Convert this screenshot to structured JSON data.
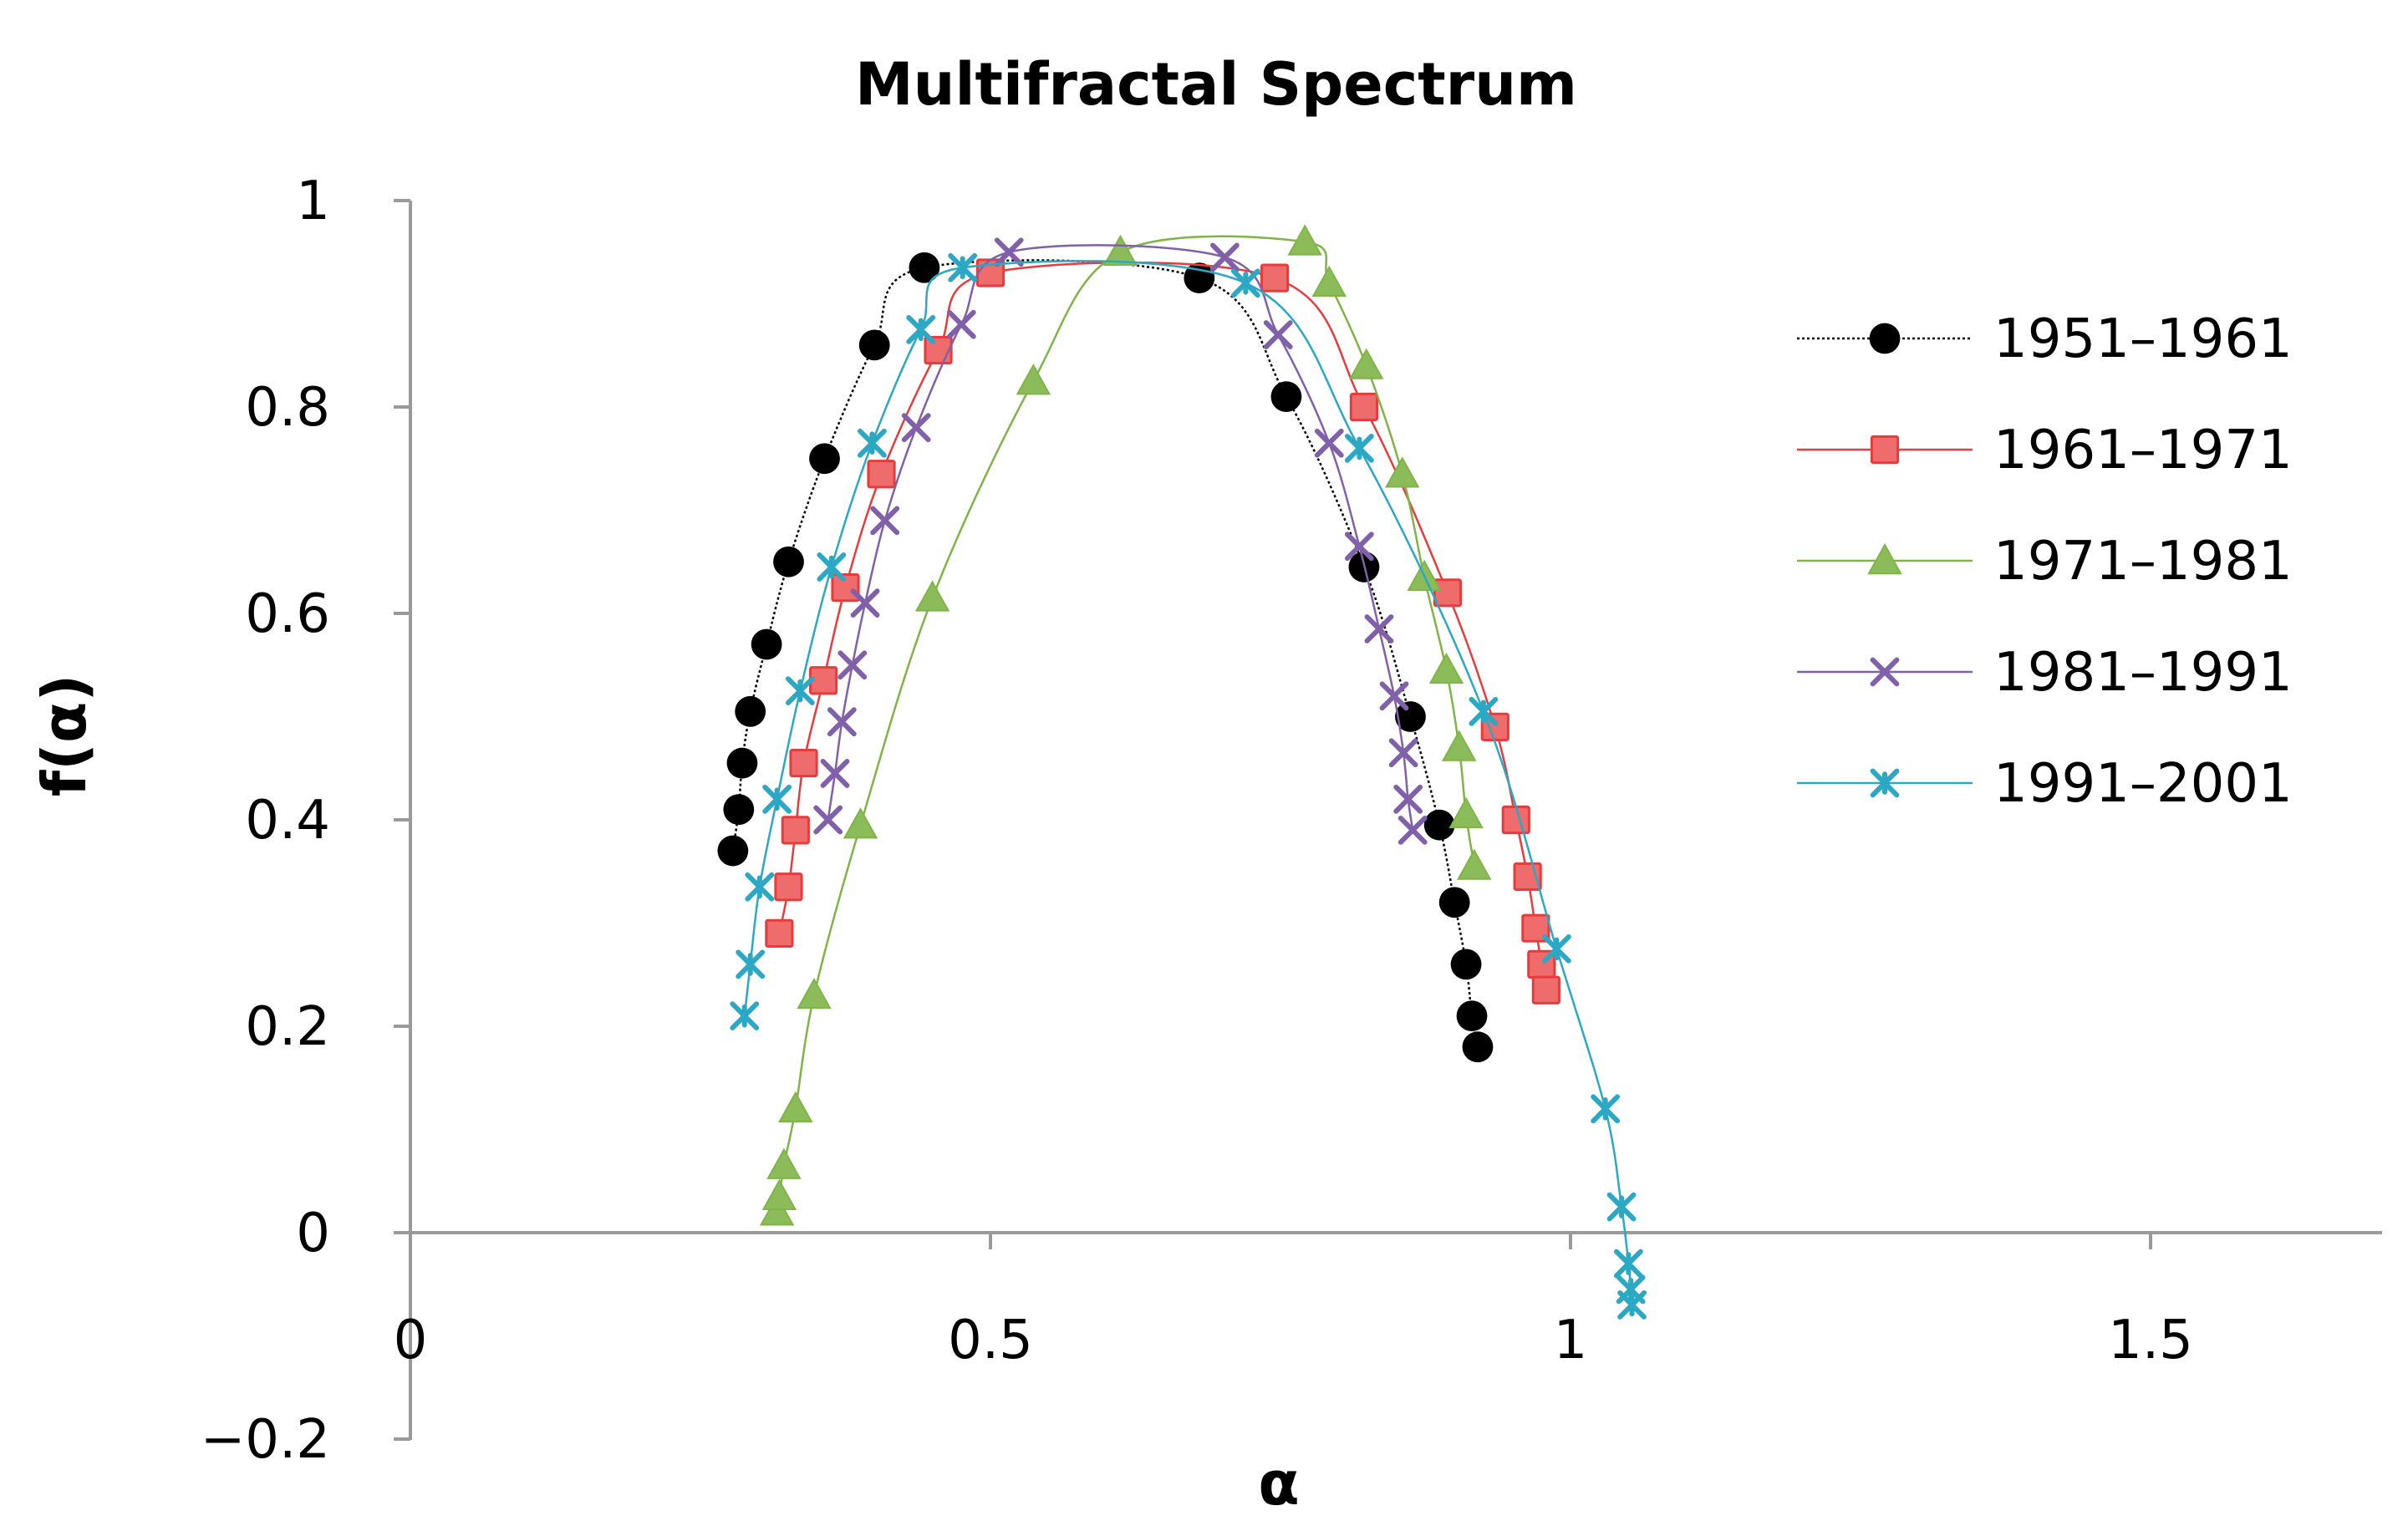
{
  "chart_data": {
    "type": "scatter",
    "title": "Multifractal Spectrum",
    "xlabel": "α",
    "ylabel": "f(α)",
    "xlim": [
      0,
      1.7
    ],
    "ylim": [
      -0.2,
      1
    ],
    "xticks": [
      0,
      0.5,
      1,
      1.5
    ],
    "xtick_labels": [
      "0",
      "0.5",
      "1",
      "1.5"
    ],
    "yticks": [
      -0.2,
      0,
      0.2,
      0.4,
      0.6,
      0.8,
      1
    ],
    "ytick_labels": [
      "−0.2",
      "0",
      "0.2",
      "0.4",
      "0.6",
      "0.8",
      "1"
    ],
    "grid": false,
    "legend_position": "right",
    "series": [
      {
        "name": "1951–1961",
        "color": "#000000",
        "marker": "circle",
        "line": "dotted",
        "points": [
          [
            0.278,
            0.37
          ],
          [
            0.283,
            0.41
          ],
          [
            0.286,
            0.455
          ],
          [
            0.293,
            0.505
          ],
          [
            0.307,
            0.57
          ],
          [
            0.326,
            0.65
          ],
          [
            0.357,
            0.75
          ],
          [
            0.4,
            0.86
          ],
          [
            0.443,
            0.935
          ],
          [
            0.68,
            0.925
          ],
          [
            0.755,
            0.81
          ],
          [
            0.822,
            0.645
          ],
          [
            0.862,
            0.5
          ],
          [
            0.887,
            0.395
          ],
          [
            0.9,
            0.32
          ],
          [
            0.91,
            0.26
          ],
          [
            0.915,
            0.21
          ],
          [
            0.92,
            0.18
          ]
        ]
      },
      {
        "name": "1961–1971",
        "color": "#e83b3b",
        "marker": "square",
        "line": "solid",
        "points": [
          [
            0.318,
            0.29
          ],
          [
            0.326,
            0.335
          ],
          [
            0.332,
            0.39
          ],
          [
            0.339,
            0.455
          ],
          [
            0.356,
            0.535
          ],
          [
            0.375,
            0.625
          ],
          [
            0.406,
            0.735
          ],
          [
            0.455,
            0.855
          ],
          [
            0.5,
            0.93
          ],
          [
            0.745,
            0.925
          ],
          [
            0.822,
            0.8
          ],
          [
            0.894,
            0.62
          ],
          [
            0.935,
            0.49
          ],
          [
            0.953,
            0.4
          ],
          [
            0.963,
            0.345
          ],
          [
            0.97,
            0.295
          ],
          [
            0.975,
            0.26
          ],
          [
            0.979,
            0.235
          ]
        ]
      },
      {
        "name": "1971–1981",
        "color": "#7fb446",
        "marker": "triangle",
        "line": "solid",
        "points": [
          [
            0.316,
            0.02
          ],
          [
            0.318,
            0.035
          ],
          [
            0.322,
            0.065
          ],
          [
            0.332,
            0.12
          ],
          [
            0.348,
            0.23
          ],
          [
            0.388,
            0.395
          ],
          [
            0.45,
            0.615
          ],
          [
            0.537,
            0.825
          ],
          [
            0.612,
            0.95
          ],
          [
            0.771,
            0.96
          ],
          [
            0.792,
            0.92
          ],
          [
            0.824,
            0.84
          ],
          [
            0.855,
            0.735
          ],
          [
            0.874,
            0.635
          ],
          [
            0.893,
            0.545
          ],
          [
            0.904,
            0.47
          ],
          [
            0.91,
            0.405
          ],
          [
            0.917,
            0.355
          ]
        ]
      },
      {
        "name": "1981–1991",
        "color": "#8060a8",
        "marker": "x",
        "line": "solid",
        "points": [
          [
            0.36,
            0.4
          ],
          [
            0.366,
            0.445
          ],
          [
            0.372,
            0.495
          ],
          [
            0.381,
            0.55
          ],
          [
            0.392,
            0.61
          ],
          [
            0.409,
            0.69
          ],
          [
            0.436,
            0.78
          ],
          [
            0.475,
            0.88
          ],
          [
            0.516,
            0.95
          ],
          [
            0.702,
            0.945
          ],
          [
            0.748,
            0.87
          ],
          [
            0.792,
            0.765
          ],
          [
            0.818,
            0.665
          ],
          [
            0.835,
            0.585
          ],
          [
            0.848,
            0.52
          ],
          [
            0.856,
            0.465
          ],
          [
            0.86,
            0.42
          ],
          [
            0.864,
            0.39
          ]
        ]
      },
      {
        "name": "1991–2001",
        "color": "#2aa8c4",
        "marker": "star",
        "line": "solid",
        "points": [
          [
            0.288,
            0.21
          ],
          [
            0.293,
            0.26
          ],
          [
            0.301,
            0.335
          ],
          [
            0.316,
            0.42
          ],
          [
            0.336,
            0.525
          ],
          [
            0.363,
            0.645
          ],
          [
            0.398,
            0.765
          ],
          [
            0.44,
            0.875
          ],
          [
            0.476,
            0.935
          ],
          [
            0.72,
            0.92
          ],
          [
            0.818,
            0.76
          ],
          [
            0.925,
            0.505
          ],
          [
            0.988,
            0.275
          ],
          [
            1.03,
            0.12
          ],
          [
            1.044,
            0.025
          ],
          [
            1.05,
            -0.03
          ],
          [
            1.052,
            -0.055
          ],
          [
            1.053,
            -0.07
          ]
        ]
      }
    ]
  }
}
